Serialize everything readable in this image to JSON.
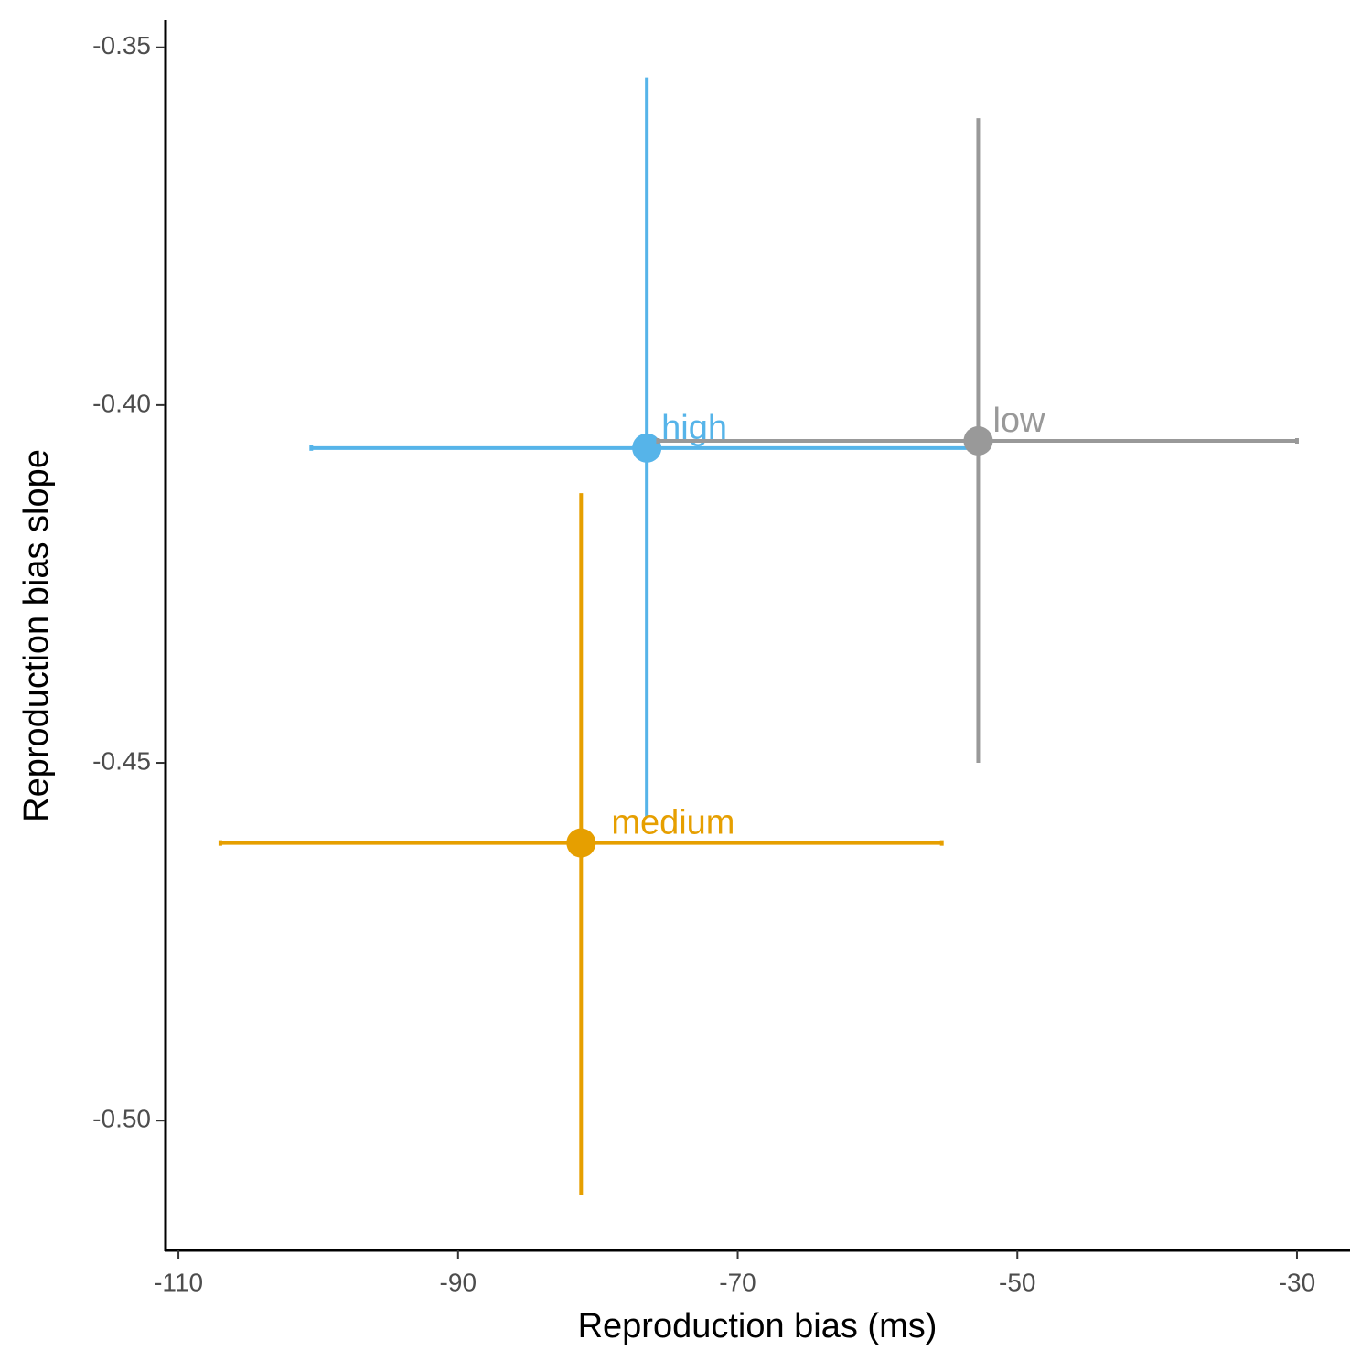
{
  "chart_data": {
    "type": "scatter",
    "x_label": "Reproduction bias (ms)",
    "y_label": "Reproduction bias slope",
    "xlim": [
      -110.92,
      -26.27
    ],
    "ylim": [
      -0.518,
      -0.3462
    ],
    "xticks": [
      -110,
      -90,
      -70,
      -50,
      -30
    ],
    "yticks": [
      -0.35,
      {
        "value": -0.4,
        "label": "-0.40"
      },
      -0.45,
      {
        "value": -0.5,
        "label": "-0.50"
      }
    ],
    "series": [
      {
        "name": "high",
        "color": "#56B4E9",
        "x": -76.5,
        "y": -0.406,
        "xmin": -100.5,
        "xmax": -52.6,
        "ymin": -0.4577,
        "ymax": -0.3542
      },
      {
        "name": "low",
        "color": "#999999",
        "x": -52.8,
        "y": -0.405,
        "xmin": -75.7,
        "xmax": -30.0,
        "ymin": -0.45,
        "ymax": -0.3599
      },
      {
        "name": "medium",
        "color": "#E69F00",
        "x": -81.2,
        "y": -0.4612,
        "xmin": -107.0,
        "xmax": -55.4,
        "ymin": -0.5104,
        "ymax": -0.4123
      }
    ]
  }
}
